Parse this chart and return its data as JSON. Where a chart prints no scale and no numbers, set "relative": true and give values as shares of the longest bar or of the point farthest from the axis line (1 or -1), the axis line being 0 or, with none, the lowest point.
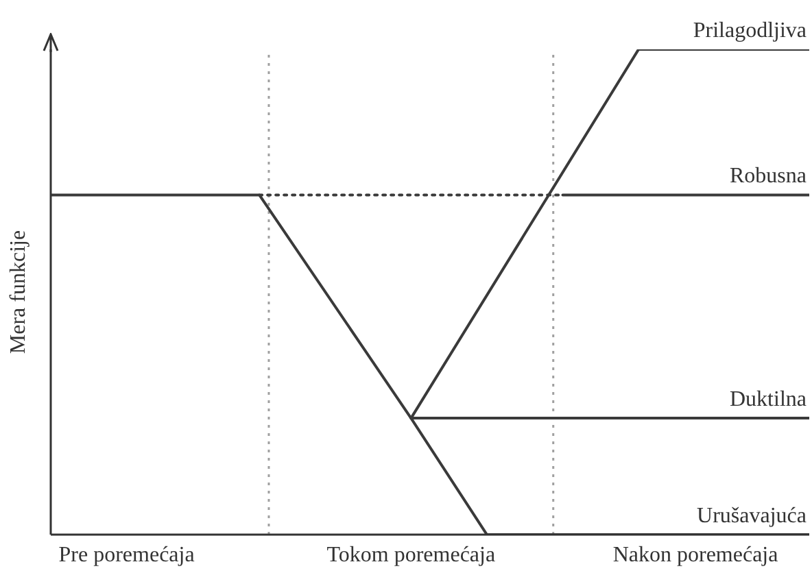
{
  "chart_data": {
    "type": "line",
    "relative": true,
    "ylabel": "Mera funkcije",
    "categories": [
      null,
      null,
      null,
      null,
      "Pre poremećaja",
      null,
      null,
      null,
      null,
      null,
      null,
      null,
      null,
      null,
      null,
      null,
      null,
      null,
      null,
      "Tokom poremećaja",
      null,
      null,
      null,
      null,
      null,
      null,
      null,
      null,
      null,
      null,
      null,
      null,
      null,
      null,
      "Nakon poremećaja",
      null,
      null,
      null,
      null,
      null,
      null
    ],
    "tick_labels": "x",
    "marker": "none",
    "line_style": "solid",
    "legend": false,
    "grid": false,
    "series": [
      {
        "name": "Urušavajuća",
        "color": "#3a3a3a",
        "values": [
          0.7,
          null,
          null,
          null,
          null,
          null,
          null,
          null,
          null,
          null,
          null,
          0.7,
          null,
          null,
          null,
          null,
          null,
          null,
          null,
          0.24,
          null,
          null,
          null,
          0,
          null,
          null,
          null,
          null,
          null,
          null,
          null,
          null,
          null,
          null,
          null,
          null,
          null,
          null,
          null,
          null,
          0
        ]
      },
      {
        "color": "#3a3a3a",
        "line_style": "dotted",
        "values": [
          null,
          null,
          null,
          null,
          null,
          null,
          null,
          null,
          null,
          null,
          null,
          0.7,
          null,
          null,
          null,
          null,
          null,
          null,
          null,
          null,
          null,
          null,
          null,
          null,
          null,
          null,
          null,
          0.7,
          null,
          null,
          null,
          null,
          null,
          null,
          null,
          null,
          null,
          null,
          null,
          null,
          null
        ]
      },
      {
        "name": "Prilagodljiva",
        "color": "#3a3a3a",
        "values": [
          null,
          null,
          null,
          null,
          null,
          null,
          null,
          null,
          null,
          null,
          null,
          null,
          null,
          null,
          null,
          null,
          null,
          null,
          null,
          0.24,
          null,
          null,
          null,
          null,
          null,
          null,
          null,
          null,
          null,
          null,
          null,
          1,
          null,
          null,
          null,
          null,
          null,
          null,
          null,
          null,
          1
        ]
      },
      {
        "name": "Robusna",
        "color": "#3a3a3a",
        "values": [
          null,
          null,
          null,
          null,
          null,
          null,
          null,
          null,
          null,
          null,
          null,
          null,
          null,
          null,
          null,
          null,
          null,
          null,
          null,
          null,
          null,
          null,
          null,
          null,
          null,
          null,
          null,
          0.7,
          null,
          null,
          null,
          null,
          null,
          null,
          null,
          null,
          null,
          null,
          null,
          null,
          0.7
        ]
      },
      {
        "name": "Duktilna",
        "color": "#3a3a3a",
        "values": [
          null,
          null,
          null,
          null,
          null,
          null,
          null,
          null,
          null,
          null,
          null,
          null,
          null,
          null,
          null,
          null,
          null,
          null,
          null,
          0.24,
          null,
          null,
          null,
          null,
          null,
          null,
          null,
          null,
          null,
          null,
          null,
          null,
          null,
          null,
          null,
          null,
          null,
          null,
          null,
          null,
          0.24
        ]
      }
    ]
  }
}
